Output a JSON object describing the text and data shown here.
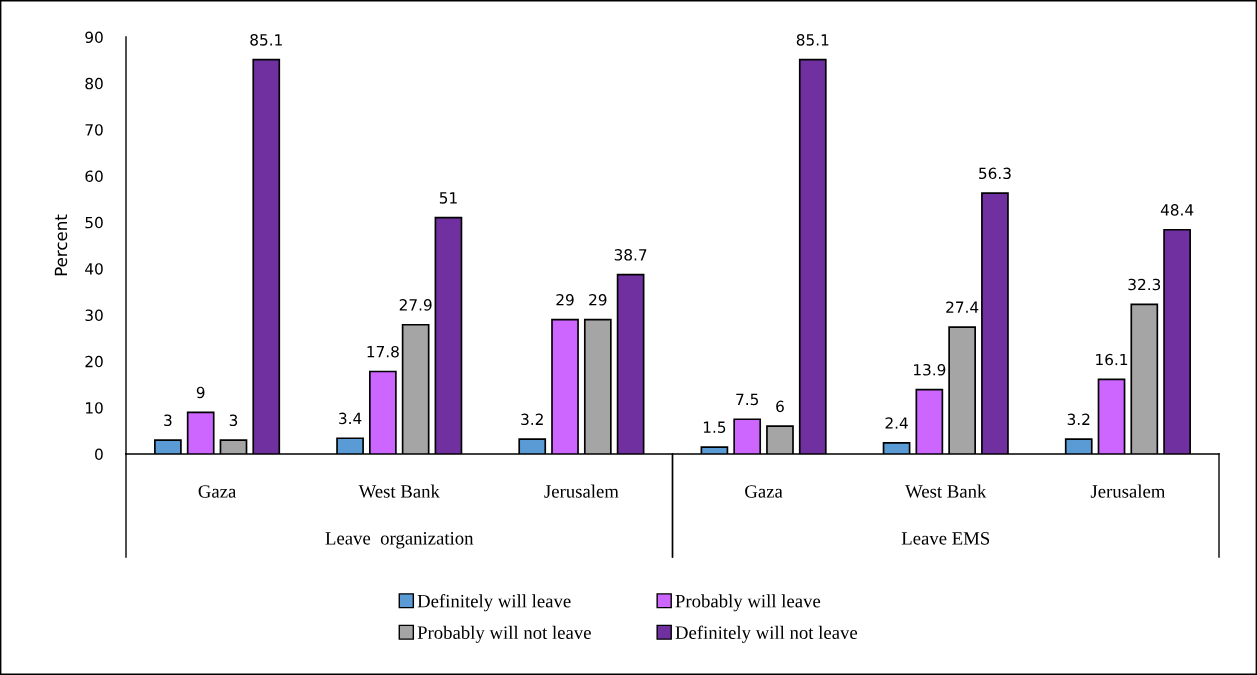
{
  "chart_data": {
    "type": "bar",
    "ylabel": "Percent",
    "categories": [
      "Gaza",
      "West Bank",
      "Jerusalem",
      "Gaza",
      "West Bank",
      "Jerusalem"
    ],
    "annotations": [
      "Leave  organization",
      "Leave EMS"
    ],
    "series": [
      {
        "name": "Definitely will leave",
        "color": "#5b9bd5",
        "values": [
          3,
          3.4,
          3.2,
          1.5,
          2.4,
          3.2
        ]
      },
      {
        "name": "Probably will leave",
        "color": "#cc66ff",
        "values": [
          9,
          17.8,
          29,
          7.5,
          13.9,
          16.1
        ]
      },
      {
        "name": "Probably will not leave",
        "color": "#a5a5a5",
        "values": [
          3,
          27.9,
          29,
          6,
          27.4,
          32.3
        ]
      },
      {
        "name": "Definitely will not leave",
        "color": "#7030a0",
        "values": [
          85.1,
          51,
          38.7,
          85.1,
          56.3,
          48.4
        ]
      }
    ],
    "ylim": [
      0,
      90
    ],
    "yticks": [
      0,
      10,
      20,
      30,
      40,
      50,
      60,
      70,
      80,
      90
    ],
    "data_labels": true,
    "legend": "bottom"
  }
}
